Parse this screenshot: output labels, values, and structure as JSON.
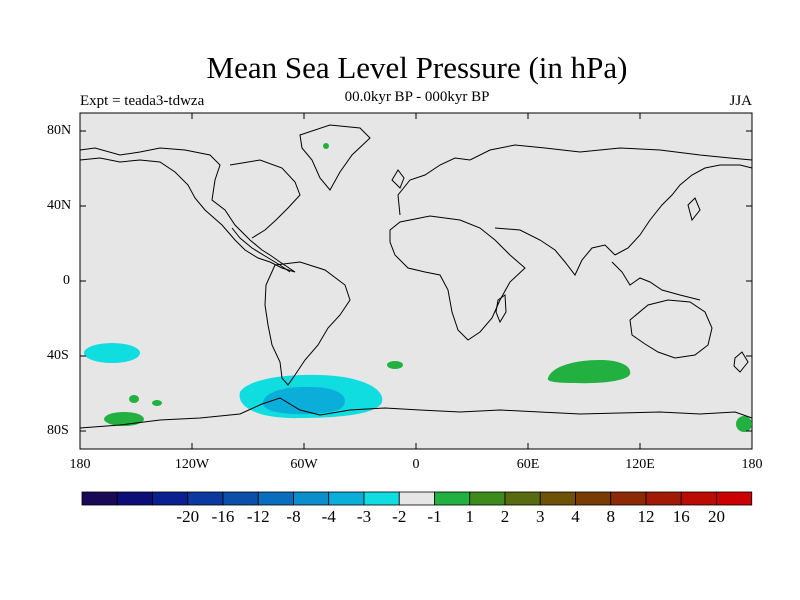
{
  "title": "Mean Sea Level Pressure (in hPa)",
  "subtitle": "00.0kyr BP - 000kyr BP",
  "left_label": "Expt = teada3-tdwza",
  "right_label": "JJA",
  "lat_labels": [
    "80N",
    "40N",
    "0",
    "40S",
    "80S"
  ],
  "lon_labels": [
    "180",
    "120W",
    "60W",
    "0",
    "60E",
    "120E",
    "180"
  ],
  "colorbar": {
    "colors": [
      "#1a0a55",
      "#0d0d78",
      "#0a1f90",
      "#0a3aa0",
      "#0a50aa",
      "#0a6ebf",
      "#0a8fcc",
      "#0aaed8",
      "#10dde0",
      "#e6e6e6",
      "#22b040",
      "#3e8a1a",
      "#586b10",
      "#6e5208",
      "#7a3c05",
      "#8c2a05",
      "#a01a05",
      "#bc0a05",
      "#cc0000"
    ],
    "labels": [
      "-20",
      "-16",
      "-12",
      "-8",
      "-4",
      "-3",
      "-2",
      "-1",
      "1",
      "2",
      "3",
      "4",
      "8",
      "12",
      "16",
      "20"
    ]
  },
  "map_colors": {
    "background": "#e6e6e6",
    "coast": "#000000"
  }
}
